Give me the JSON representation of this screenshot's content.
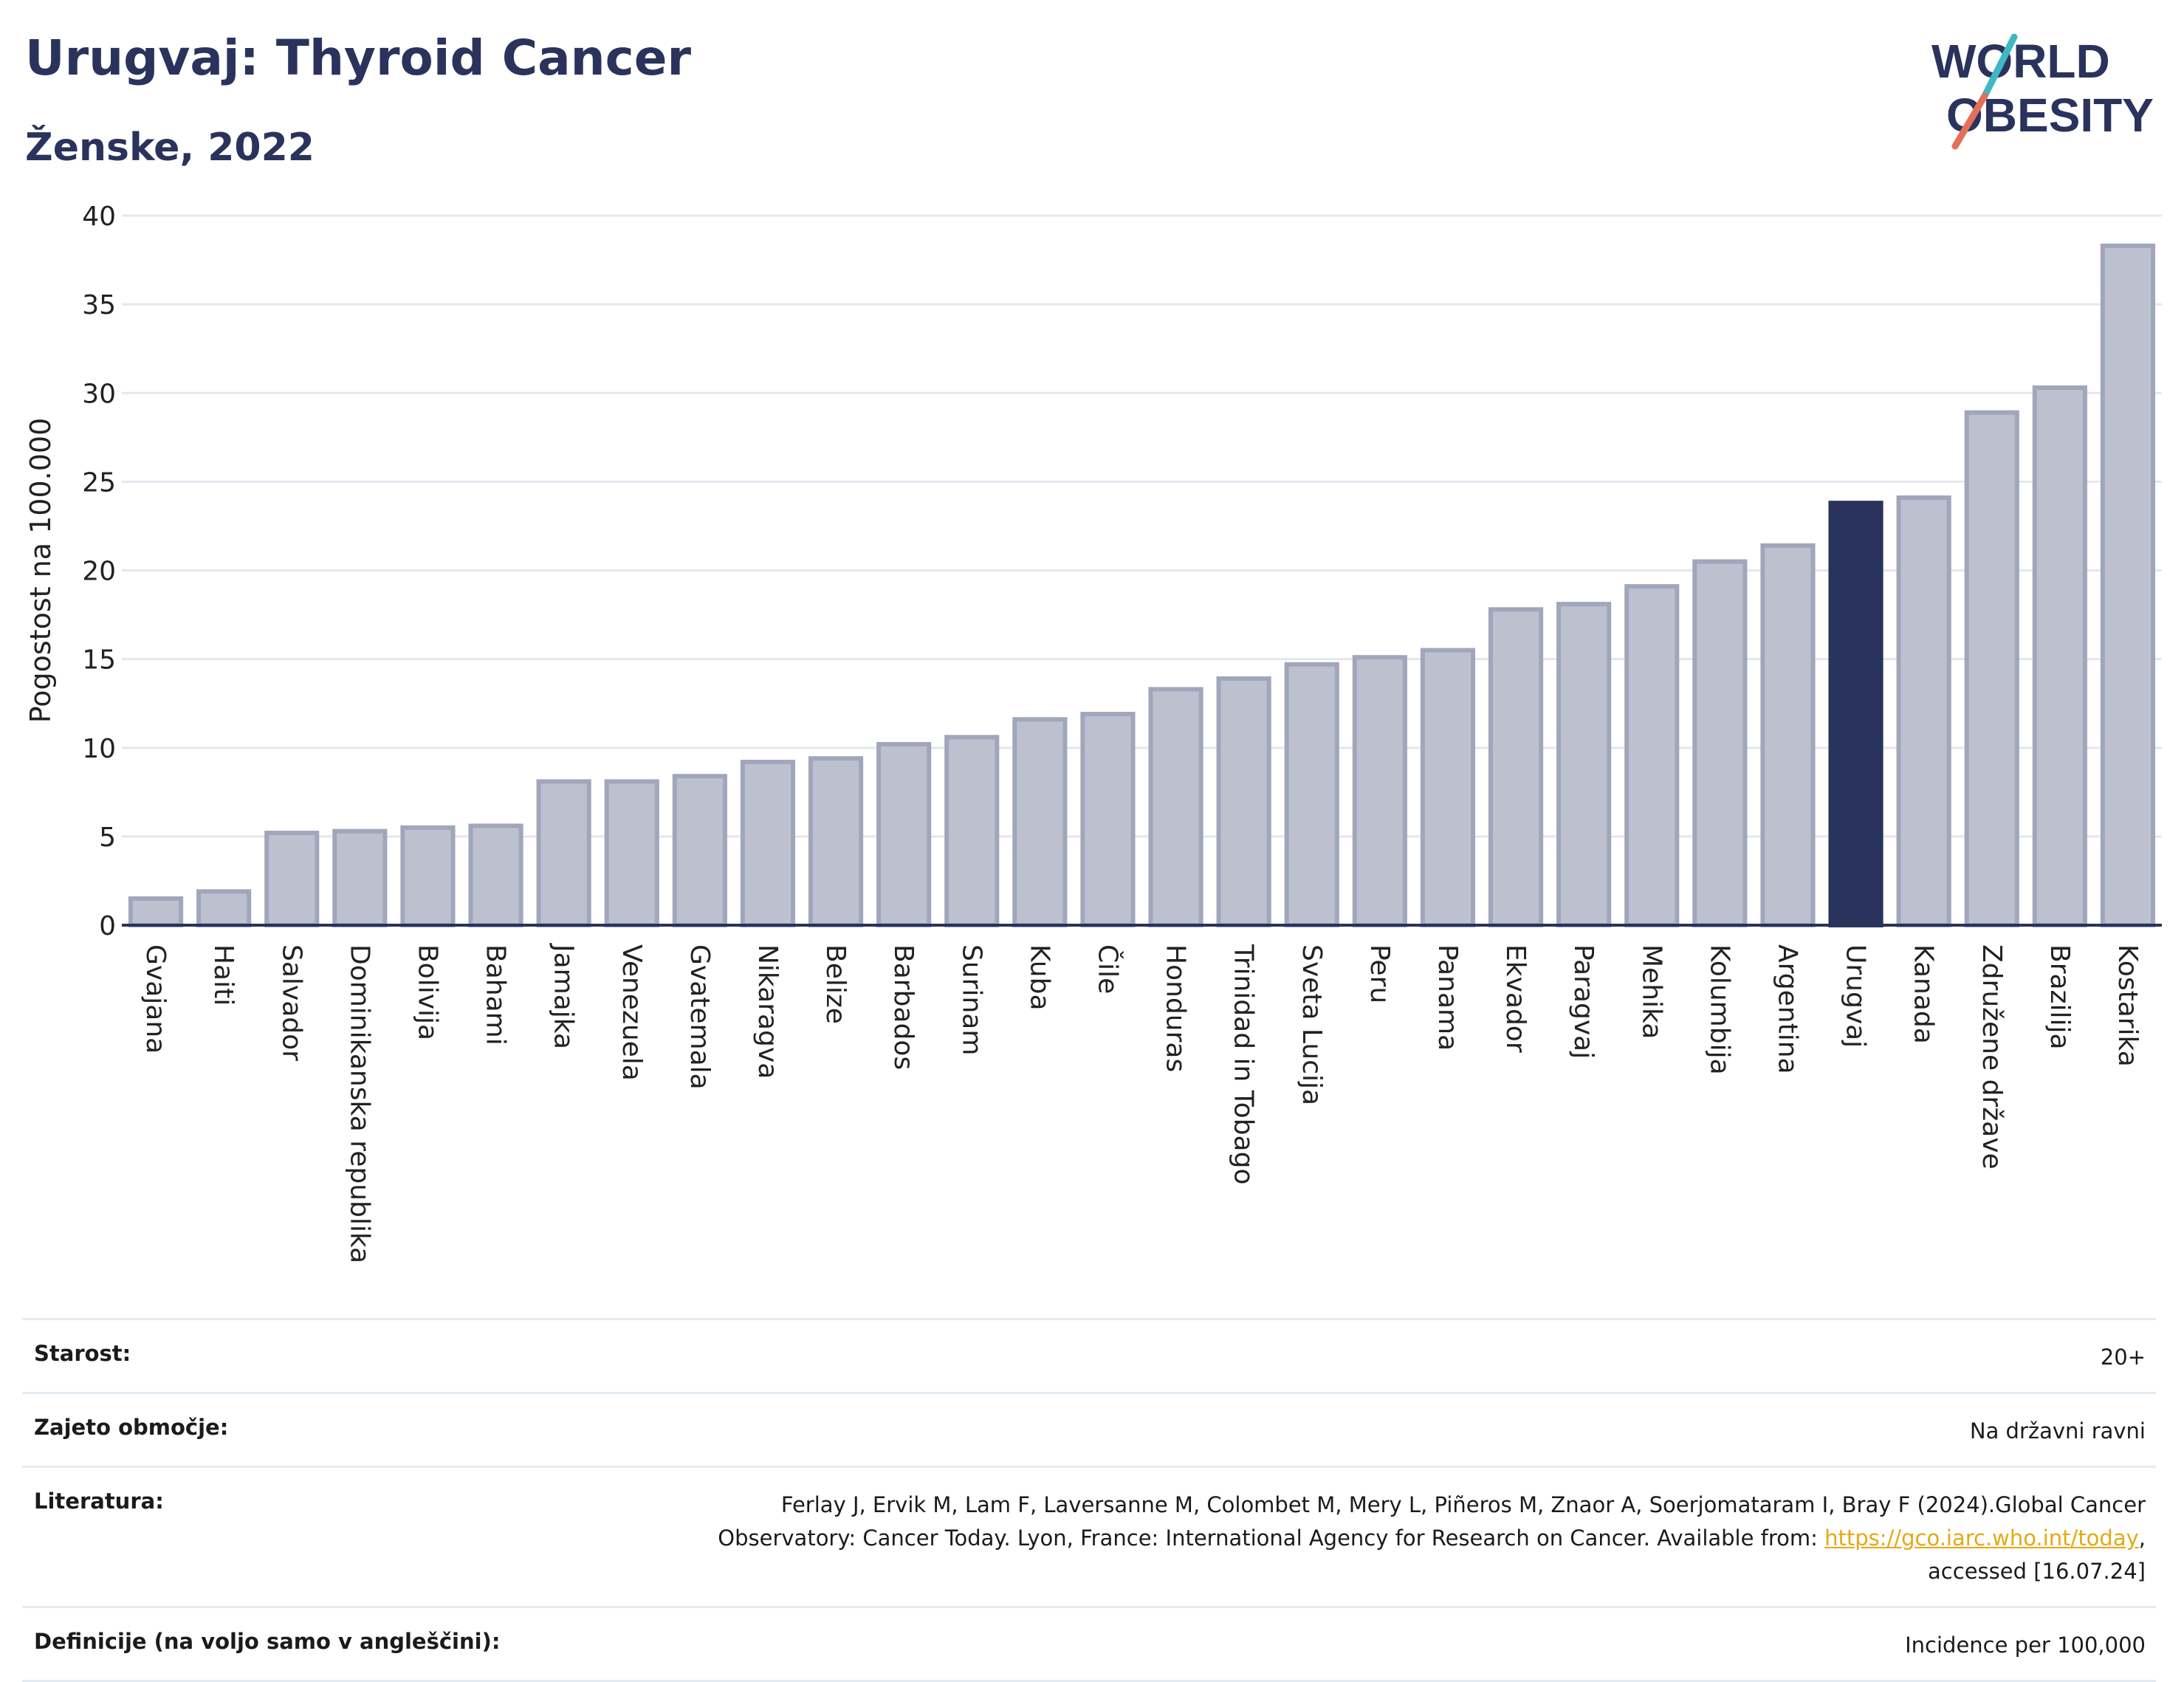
{
  "header": {
    "title": "Urugvaj: Thyroid Cancer",
    "subtitle": "Ženske, 2022"
  },
  "logo": {
    "line1": "WORLD",
    "line2": "OBESITY",
    "colors": {
      "text": "#2a335c",
      "slash_top": "#3fb8c4",
      "slash_bottom": "#e4705a"
    }
  },
  "colors": {
    "bar_fill": "#bdc1cf",
    "bar_stroke": "#a0a6bb",
    "highlight_fill": "#2a335c",
    "grid": "#e3e8ef",
    "axis": "#2a335c",
    "text": "#222222"
  },
  "chart_data": {
    "type": "bar",
    "ylabel": "Pogostost na 100.000",
    "xlabel": "",
    "ylim": [
      0,
      40
    ],
    "yticks": [
      0,
      5,
      10,
      15,
      20,
      25,
      30,
      35,
      40
    ],
    "grid": true,
    "highlight": "Urugvaj",
    "categories": [
      "Gvajana",
      "Haiti",
      "Salvador",
      "Dominikanska republika",
      "Bolivija",
      "Bahami",
      "Jamajka",
      "Venezuela",
      "Gvatemala",
      "Nikaragva",
      "Belize",
      "Barbados",
      "Surinam",
      "Kuba",
      "Čile",
      "Honduras",
      "Trinidad in Tobago",
      "Sveta Lucija",
      "Peru",
      "Panama",
      "Ekvador",
      "Paragvaj",
      "Mehika",
      "Kolumbija",
      "Argentina",
      "Urugvaj",
      "Kanada",
      "Združene države",
      "Brazilija",
      "Kostarika"
    ],
    "values": [
      1.5,
      1.9,
      5.2,
      5.3,
      5.5,
      5.6,
      8.1,
      8.1,
      8.4,
      9.2,
      9.4,
      10.2,
      10.6,
      11.6,
      11.9,
      13.3,
      13.9,
      14.7,
      15.1,
      15.5,
      17.8,
      18.1,
      19.1,
      20.5,
      21.4,
      23.8,
      24.1,
      28.9,
      30.3,
      38.3
    ]
  },
  "info": {
    "rows": [
      {
        "label": "Starost:",
        "value": "20+"
      },
      {
        "label": "Zajeto območje:",
        "value": "Na državni ravni"
      },
      {
        "label": "Definicije (na voljo samo v angleščini):",
        "value": "Incidence per 100,000"
      }
    ],
    "literature": {
      "label": "Literatura:",
      "line1": "Ferlay J, Ervik M, Lam F, Laversanne M, Colombet M, Mery L, Piñeros M, Znaor A, Soerjomataram I, Bray F (2024).Global Cancer",
      "line2_prefix": "Observatory: Cancer Today. Lyon, France: International Agency for Research on Cancer. Available from: ",
      "link": "https://gco.iarc.who.int/today",
      "line2_suffix": ",",
      "line3": "accessed [16.07.24]"
    }
  }
}
